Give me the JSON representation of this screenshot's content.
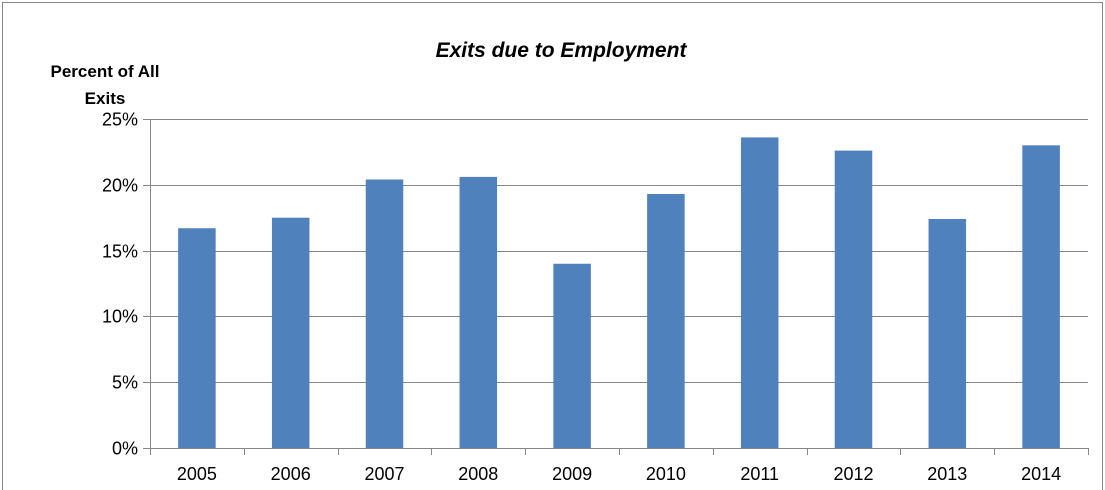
{
  "chart_data": {
    "type": "bar",
    "title": "Exits due to Employment",
    "ylabel_lines": [
      "Percent of All",
      "Exits"
    ],
    "xlabel": "",
    "categories": [
      "2005",
      "2006",
      "2007",
      "2008",
      "2009",
      "2010",
      "2011",
      "2012",
      "2013",
      "2014"
    ],
    "values": [
      16.7,
      17.5,
      20.4,
      20.6,
      14.0,
      19.3,
      23.6,
      22.6,
      17.4,
      23.0
    ],
    "ylim": [
      0,
      25
    ],
    "yticks": [
      0,
      5,
      10,
      15,
      20,
      25
    ],
    "ytick_labels": [
      "0%",
      "5%",
      "10%",
      "15%",
      "20%",
      "25%"
    ],
    "grid": true,
    "legend": "none",
    "colors": {
      "bar": "#4f81bd",
      "grid": "#868686",
      "axis": "#868686",
      "border": "#868686"
    }
  }
}
